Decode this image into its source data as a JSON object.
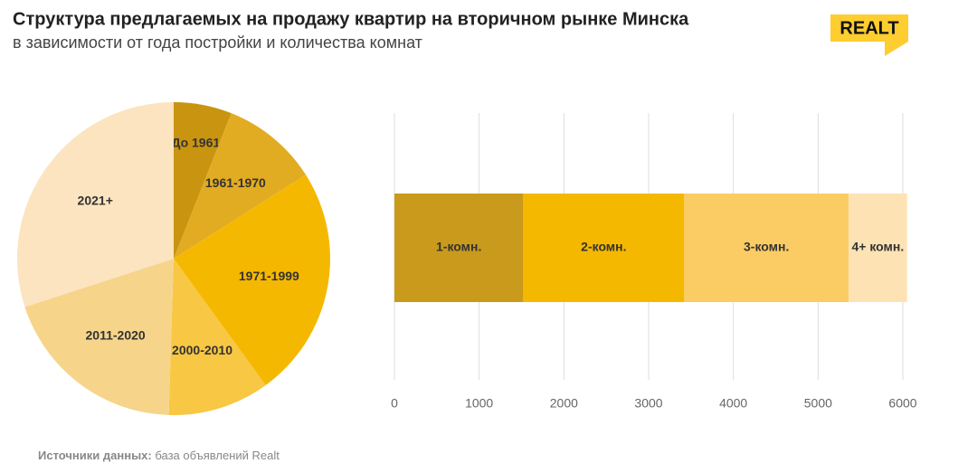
{
  "title": "Структура предлагаемых на продажу квартир на вторичном рынке Минска",
  "subtitle": "в зависимости от года постройки и количества комнат",
  "logo": "REALT",
  "source": {
    "label": "Источники данных:",
    "text": "база объявлений Realt"
  },
  "chart_data": [
    {
      "type": "pie",
      "categories": [
        "До 1961",
        "1961-1970",
        "1971-1999",
        "2000-2010",
        "2011-2020",
        "2021+"
      ],
      "values": [
        6,
        10,
        24,
        10.5,
        19.5,
        30
      ],
      "colors": [
        "#c9940f",
        "#e2ac22",
        "#f5b800",
        "#f8c743",
        "#f6d48a",
        "#fbe4bf"
      ]
    },
    {
      "type": "bar",
      "orientation": "horizontal",
      "stacked": true,
      "categories": [
        null
      ],
      "series": [
        {
          "name": "1-комн.",
          "color": "#c99a1c",
          "values": [
            1520
          ]
        },
        {
          "name": "2-комн.",
          "color": "#f5b800",
          "values": [
            1900
          ]
        },
        {
          "name": "3-комн.",
          "color": "#fbcc63",
          "values": [
            1940
          ]
        },
        {
          "name": "4+ комн.",
          "color": "#fde2b4",
          "values": [
            690
          ]
        }
      ],
      "xlim": [
        0,
        6000
      ],
      "xticks": [
        0,
        1000,
        2000,
        3000,
        4000,
        5000,
        6000
      ],
      "grid": true
    }
  ]
}
